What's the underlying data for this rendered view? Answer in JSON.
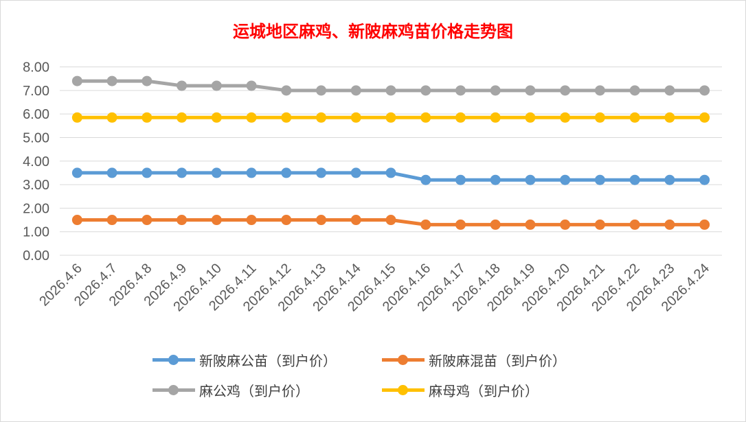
{
  "chart_data": {
    "type": "line",
    "title": "运城地区麻鸡、新陂麻鸡苗价格走势图",
    "xlabel": "",
    "ylabel": "",
    "ylim": [
      0,
      8
    ],
    "yticks": [
      "0.00",
      "1.00",
      "2.00",
      "3.00",
      "4.00",
      "5.00",
      "6.00",
      "7.00",
      "8.00"
    ],
    "grid": "horizontal",
    "legend_position": "bottom",
    "categories": [
      "2026.4.6",
      "2026.4.7",
      "2026.4.8",
      "2026.4.9",
      "2026.4.10",
      "2026.4.11",
      "2026.4.12",
      "2026.4.13",
      "2026.4.14",
      "2026.4.15",
      "2026.4.16",
      "2026.4.17",
      "2026.4.18",
      "2026.4.19",
      "2026.4.20",
      "2026.4.21",
      "2026.4.22",
      "2026.4.23",
      "2026.4.24"
    ],
    "series": [
      {
        "name": "新陂麻公苗（到户价）",
        "color": "#5b9bd5",
        "values": [
          3.5,
          3.5,
          3.5,
          3.5,
          3.5,
          3.5,
          3.5,
          3.5,
          3.5,
          3.5,
          3.2,
          3.2,
          3.2,
          3.2,
          3.2,
          3.2,
          3.2,
          3.2,
          3.2
        ]
      },
      {
        "name": "新陂麻混苗（到户价）",
        "color": "#ed7d31",
        "values": [
          1.5,
          1.5,
          1.5,
          1.5,
          1.5,
          1.5,
          1.5,
          1.5,
          1.5,
          1.5,
          1.3,
          1.3,
          1.3,
          1.3,
          1.3,
          1.3,
          1.3,
          1.3,
          1.3
        ]
      },
      {
        "name": "麻公鸡（到户价）",
        "color": "#a5a5a5",
        "values": [
          7.4,
          7.4,
          7.4,
          7.2,
          7.2,
          7.2,
          7.0,
          7.0,
          7.0,
          7.0,
          7.0,
          7.0,
          7.0,
          7.0,
          7.0,
          7.0,
          7.0,
          7.0,
          7.0
        ]
      },
      {
        "name": "麻母鸡（到户价）",
        "color": "#ffc000",
        "values": [
          5.85,
          5.85,
          5.85,
          5.85,
          5.85,
          5.85,
          5.85,
          5.85,
          5.85,
          5.85,
          5.85,
          5.85,
          5.85,
          5.85,
          5.85,
          5.85,
          5.85,
          5.85,
          5.85
        ]
      }
    ]
  }
}
